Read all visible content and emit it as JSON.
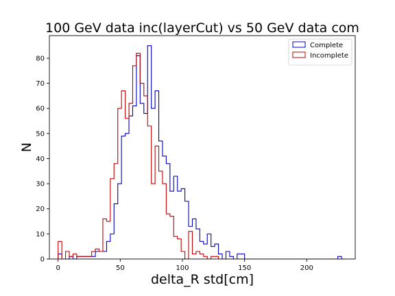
{
  "chart_data": {
    "type": "histogram-step",
    "title": "100 GeV data inc(layerCut) vs 50 GeV data com",
    "xlabel": "delta_R std[cm]",
    "ylabel": "N",
    "xlim": [
      -7,
      239
    ],
    "ylim": [
      0,
      89
    ],
    "xticks": [
      0,
      50,
      100,
      150,
      200
    ],
    "yticks": [
      0,
      10,
      20,
      30,
      40,
      50,
      60,
      70,
      80
    ],
    "grid": false,
    "legend_position": "top-right",
    "bin_start": 0,
    "bin_width": 3.0,
    "series": [
      {
        "name": "Complete",
        "color": "#0000bf",
        "counts": [
          2,
          0,
          0,
          1,
          0,
          1,
          1,
          1,
          1,
          1,
          3,
          3,
          3,
          7,
          10,
          22,
          30,
          49,
          50,
          57,
          61,
          81,
          62,
          58,
          85,
          60,
          67,
          47,
          41,
          38,
          27,
          33,
          27,
          28,
          23,
          13,
          16,
          12,
          7,
          6,
          10,
          5,
          6,
          2,
          0,
          3,
          1,
          0,
          2,
          2,
          0,
          0,
          0,
          0,
          0,
          0,
          0,
          0,
          0,
          0,
          0,
          0,
          0,
          0,
          0,
          0,
          0,
          0,
          0,
          0,
          0,
          0,
          0,
          0,
          0,
          1,
          0
        ]
      },
      {
        "name": "Incomplete",
        "color": "#bf0000",
        "counts": [
          7,
          0,
          3,
          1,
          2,
          1,
          1,
          1,
          1,
          3,
          4,
          3,
          16,
          15,
          32,
          38,
          60,
          67,
          56,
          62,
          77,
          82,
          70,
          65,
          53,
          30,
          45,
          35,
          30,
          18,
          17,
          9,
          8,
          3,
          0,
          11,
          2,
          3,
          2,
          1,
          0,
          1,
          1,
          0,
          0,
          0,
          0,
          0,
          0,
          0,
          0,
          0,
          0,
          0,
          0,
          0,
          0,
          0,
          0,
          0,
          0,
          0,
          0,
          0,
          0,
          0,
          0,
          0,
          0,
          0,
          0,
          0,
          0,
          0,
          0,
          0,
          0
        ]
      }
    ]
  }
}
